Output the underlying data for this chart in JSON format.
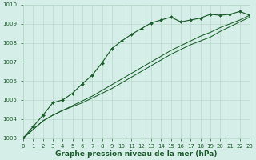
{
  "title": "Graphe pression niveau de la mer (hPa)",
  "bg_color": "#d6eee8",
  "grid_color": "#b8d9cc",
  "line_color": "#1a5c2a",
  "x_values": [
    0,
    1,
    2,
    3,
    4,
    5,
    6,
    7,
    8,
    9,
    10,
    11,
    12,
    13,
    14,
    15,
    16,
    17,
    18,
    19,
    20,
    21,
    22,
    23
  ],
  "line_marker": [
    1003.0,
    1003.6,
    1004.2,
    1004.85,
    1005.0,
    1005.35,
    1005.85,
    1006.3,
    1006.95,
    1007.7,
    1008.1,
    1008.45,
    1008.75,
    1009.05,
    1009.2,
    1009.35,
    1009.1,
    1009.2,
    1009.3,
    1009.5,
    1009.45,
    1009.5,
    1009.65,
    1009.45
  ],
  "line_smooth1": [
    1003.0,
    1003.45,
    1003.9,
    1004.2,
    1004.45,
    1004.65,
    1004.85,
    1005.1,
    1005.35,
    1005.6,
    1005.9,
    1006.2,
    1006.5,
    1006.8,
    1007.1,
    1007.4,
    1007.65,
    1007.9,
    1008.1,
    1008.3,
    1008.6,
    1008.85,
    1009.1,
    1009.35
  ],
  "line_smooth2": [
    1003.0,
    1003.45,
    1003.9,
    1004.2,
    1004.45,
    1004.7,
    1004.95,
    1005.2,
    1005.5,
    1005.8,
    1006.1,
    1006.4,
    1006.7,
    1007.0,
    1007.3,
    1007.6,
    1007.85,
    1008.1,
    1008.35,
    1008.55,
    1008.8,
    1009.0,
    1009.2,
    1009.45
  ],
  "ylim": [
    1003,
    1010
  ],
  "xlim": [
    0,
    23
  ],
  "yticks": [
    1003,
    1004,
    1005,
    1006,
    1007,
    1008,
    1009,
    1010
  ],
  "xticks": [
    0,
    1,
    2,
    3,
    4,
    5,
    6,
    7,
    8,
    9,
    10,
    11,
    12,
    13,
    14,
    15,
    16,
    17,
    18,
    19,
    20,
    21,
    22,
    23
  ],
  "tick_fontsize": 5.0,
  "label_fontsize": 6.5
}
